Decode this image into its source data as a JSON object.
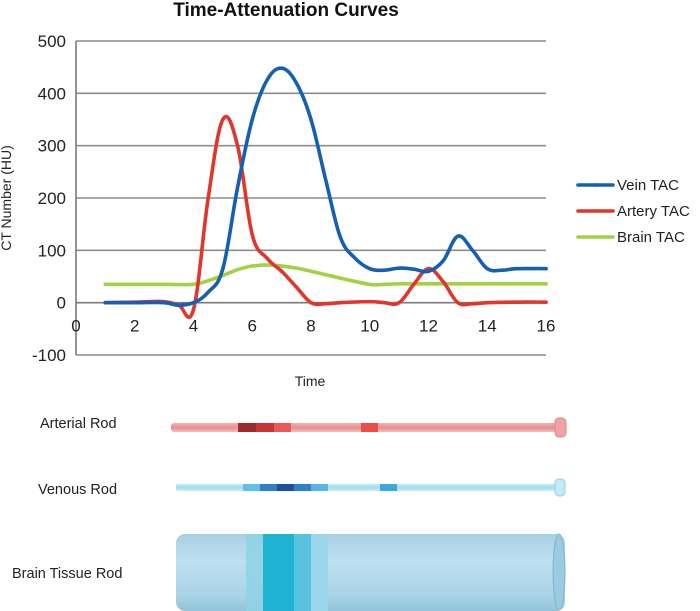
{
  "chart_data": {
    "type": "line",
    "title": "Time-Attenuation Curves",
    "xlabel": "Time",
    "ylabel": "CT Number (HU)",
    "xlim": [
      0,
      16
    ],
    "ylim": [
      -100,
      500
    ],
    "xticks": [
      "0",
      "2",
      "4",
      "6",
      "8",
      "10",
      "12",
      "14",
      "16"
    ],
    "yticks": [
      "500",
      "400",
      "300",
      "200",
      "100",
      "0",
      "-100"
    ],
    "grid": "horizontal",
    "legend_position": "right",
    "series": [
      {
        "name": "Vein TAC",
        "color": "#1560b0",
        "x": [
          1,
          2,
          3,
          3.5,
          4,
          4.5,
          5,
          5.5,
          6,
          6.5,
          7,
          7.5,
          8,
          8.5,
          9,
          9.5,
          10,
          10.5,
          11,
          11.5,
          12,
          12.5,
          13,
          13.5,
          14,
          14.5,
          15,
          16
        ],
        "y": [
          0,
          0,
          0,
          -5,
          0,
          20,
          65,
          220,
          350,
          425,
          448,
          420,
          350,
          235,
          125,
          85,
          65,
          62,
          66,
          64,
          60,
          80,
          127,
          100,
          65,
          62,
          65,
          65
        ]
      },
      {
        "name": "Artery TAC",
        "color": "#e0362c",
        "x": [
          1,
          2,
          3,
          3.5,
          4,
          4.5,
          5,
          5.5,
          6,
          6.5,
          7,
          7.5,
          8,
          8.5,
          9,
          10,
          10.5,
          11,
          11.5,
          12,
          12.5,
          13,
          13.5,
          14,
          15,
          16
        ],
        "y": [
          0,
          1,
          2,
          -5,
          -13,
          200,
          350,
          300,
          130,
          85,
          60,
          30,
          0,
          -2,
          0,
          2,
          0,
          0,
          35,
          65,
          40,
          0,
          -2,
          0,
          1,
          1
        ]
      },
      {
        "name": "Brain TAC",
        "color": "#a3d145",
        "x": [
          1,
          2,
          3,
          4,
          4.5,
          5,
          5.5,
          6,
          6.5,
          7,
          7.5,
          8,
          9,
          10,
          10.5,
          11,
          12,
          13,
          14,
          15,
          16
        ],
        "y": [
          35,
          35,
          35,
          35,
          42,
          52,
          63,
          70,
          72,
          70,
          66,
          60,
          47,
          35,
          35,
          36,
          36,
          36,
          36,
          36,
          36
        ]
      }
    ]
  },
  "rods": [
    {
      "label": "Arterial Rod"
    },
    {
      "label": "Venous Rod"
    },
    {
      "label": "Brain Tissue  Rod"
    }
  ]
}
